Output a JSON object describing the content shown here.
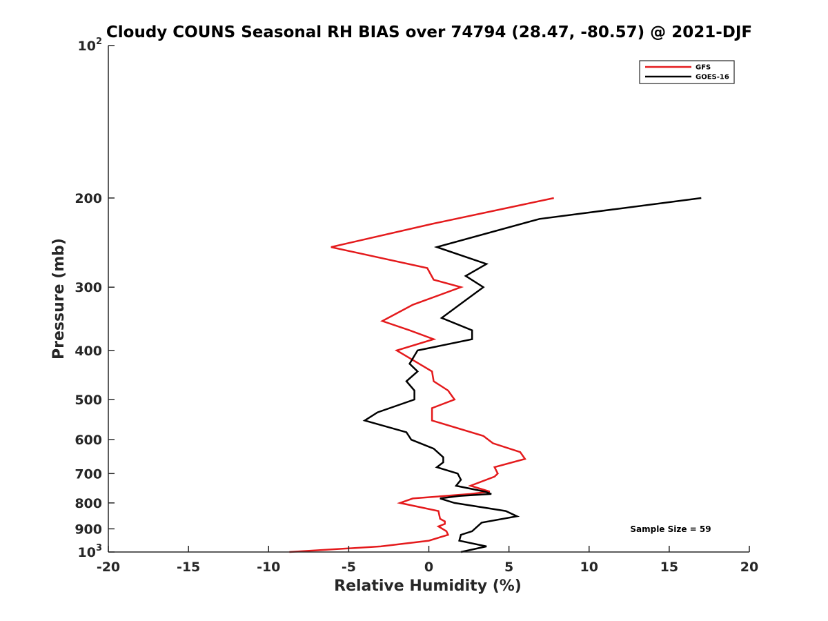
{
  "chart_data": {
    "type": "line",
    "title": "Cloudy COUNS Seasonal RH BIAS over 74794 (28.47, -80.57) @ 2021-DJF",
    "xlabel": "Relative Humidity (%)",
    "ylabel": "Pressure (mb)",
    "xlim": [
      -20,
      20
    ],
    "ylim": [
      100,
      1000
    ],
    "y_scale": "log",
    "y_reversed": true,
    "x_ticks": [
      -20,
      -15,
      -10,
      -5,
      0,
      5,
      10,
      15,
      20
    ],
    "x_tick_labels": [
      "-20",
      "-15",
      "-10",
      "-5",
      "0",
      "5",
      "10",
      "15",
      "20"
    ],
    "y_ticks": [
      {
        "value": 100,
        "base": "10",
        "exp": "2"
      },
      {
        "value": 200,
        "label": "200"
      },
      {
        "value": 300,
        "label": "300"
      },
      {
        "value": 400,
        "label": "400"
      },
      {
        "value": 500,
        "label": "500"
      },
      {
        "value": 600,
        "label": "600"
      },
      {
        "value": 700,
        "label": "700"
      },
      {
        "value": 800,
        "label": "800"
      },
      {
        "value": 900,
        "label": "900"
      },
      {
        "value": 1000,
        "base": "10",
        "exp": "3"
      }
    ],
    "legend_position": "top-right",
    "annotation": "Sample Size = 59",
    "series": [
      {
        "name": "GFS",
        "color": "#e41a1c",
        "points": [
          [
            7.8,
            200
          ],
          [
            0.2,
            225
          ],
          [
            -6.1,
            250
          ],
          [
            -0.1,
            275
          ],
          [
            0.3,
            290
          ],
          [
            2.0,
            300
          ],
          [
            -1.0,
            325
          ],
          [
            -2.9,
            350
          ],
          [
            -1.2,
            365
          ],
          [
            0.3,
            380
          ],
          [
            -2.0,
            400
          ],
          [
            0.2,
            440
          ],
          [
            0.3,
            460
          ],
          [
            1.2,
            480
          ],
          [
            1.6,
            500
          ],
          [
            0.2,
            520
          ],
          [
            0.2,
            550
          ],
          [
            3.4,
            590
          ],
          [
            4.0,
            610
          ],
          [
            5.7,
            635
          ],
          [
            6.0,
            655
          ],
          [
            4.1,
            680
          ],
          [
            4.3,
            700
          ],
          [
            4.1,
            710
          ],
          [
            2.6,
            740
          ],
          [
            3.8,
            760
          ],
          [
            2.6,
            768
          ],
          [
            -1.0,
            784
          ],
          [
            -1.8,
            800
          ],
          [
            0.6,
            830
          ],
          [
            0.7,
            860
          ],
          [
            1.0,
            870
          ],
          [
            1.0,
            880
          ],
          [
            0.6,
            890
          ],
          [
            1.1,
            910
          ],
          [
            1.2,
            925
          ],
          [
            0.0,
            950
          ],
          [
            -3.0,
            975
          ],
          [
            -8.7,
            1000
          ]
        ]
      },
      {
        "name": "GOES-16",
        "color": "#000000",
        "points": [
          [
            17.0,
            200
          ],
          [
            6.9,
            220
          ],
          [
            0.5,
            250
          ],
          [
            3.6,
            270
          ],
          [
            2.3,
            285
          ],
          [
            3.4,
            300
          ],
          [
            2.2,
            320
          ],
          [
            0.8,
            345
          ],
          [
            2.7,
            365
          ],
          [
            2.7,
            380
          ],
          [
            -0.7,
            400
          ],
          [
            -1.2,
            425
          ],
          [
            -0.7,
            440
          ],
          [
            -1.4,
            460
          ],
          [
            -0.9,
            480
          ],
          [
            -0.9,
            500
          ],
          [
            -3.2,
            530
          ],
          [
            -4.0,
            550
          ],
          [
            -1.4,
            580
          ],
          [
            -1.1,
            600
          ],
          [
            0.3,
            625
          ],
          [
            0.9,
            650
          ],
          [
            0.9,
            665
          ],
          [
            0.5,
            680
          ],
          [
            1.8,
            700
          ],
          [
            2.0,
            720
          ],
          [
            1.7,
            740
          ],
          [
            3.5,
            760
          ],
          [
            3.9,
            768
          ],
          [
            1.9,
            775
          ],
          [
            0.7,
            784
          ],
          [
            1.6,
            800
          ],
          [
            4.8,
            830
          ],
          [
            5.5,
            850
          ],
          [
            3.3,
            875
          ],
          [
            2.7,
            910
          ],
          [
            2.0,
            925
          ],
          [
            1.9,
            950
          ],
          [
            3.6,
            975
          ],
          [
            2.0,
            1000
          ]
        ]
      }
    ]
  }
}
